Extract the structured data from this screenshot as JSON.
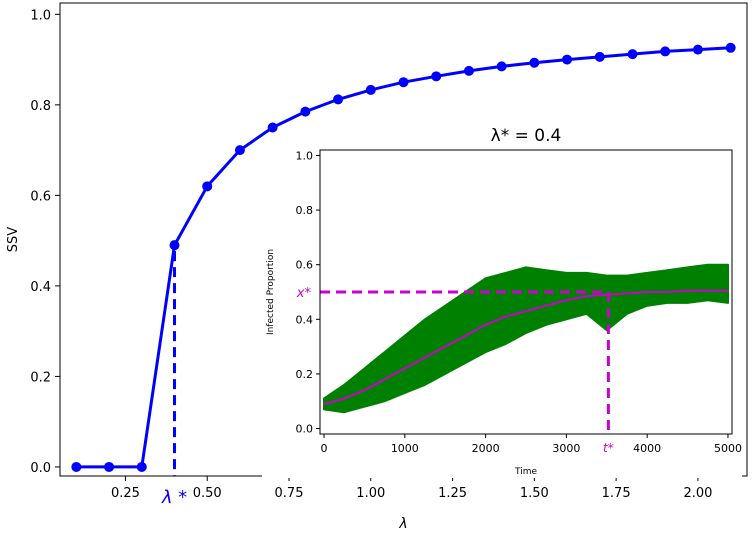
{
  "chart_data": [
    {
      "type": "line",
      "xlabel": "λ",
      "ylabel": "SSV",
      "xlim": [
        0.05,
        2.15
      ],
      "ylim": [
        -0.02,
        1.025
      ],
      "xticks": [
        0.25,
        0.5,
        0.75,
        1.0,
        1.25,
        1.5,
        1.75,
        2.0
      ],
      "xtick_labels": [
        "0.25",
        "0.50",
        "0.75",
        "1.00",
        "1.25",
        "1.50",
        "1.75",
        "2.00"
      ],
      "yticks": [
        0.0,
        0.2,
        0.4,
        0.6,
        0.8,
        1.0
      ],
      "ytick_labels": [
        "0.0",
        "0.2",
        "0.4",
        "0.6",
        "0.8",
        "1.0"
      ],
      "series": [
        {
          "color": "#0000ff",
          "x": [
            0.1,
            0.2,
            0.3,
            0.4,
            0.5,
            0.6,
            0.7,
            0.8,
            0.9,
            1.0,
            1.1,
            1.2,
            1.3,
            1.4,
            1.5,
            1.6,
            1.7,
            1.8,
            1.9,
            2.0,
            2.1
          ],
          "y": [
            0.0,
            0.0,
            0.0,
            0.49,
            0.62,
            0.7,
            0.75,
            0.785,
            0.812,
            0.833,
            0.85,
            0.863,
            0.875,
            0.885,
            0.893,
            0.9,
            0.906,
            0.912,
            0.918,
            0.922,
            0.926
          ]
        }
      ],
      "annotation": {
        "label": "λ *",
        "x": 0.4,
        "y": 0.49,
        "color": "#0000ff"
      }
    },
    {
      "type": "line",
      "title": "λ* = 0.4",
      "xlabel": "Time",
      "ylabel": "Infected Proportion",
      "xlim": [
        -50,
        5050
      ],
      "ylim": [
        -0.02,
        1.02
      ],
      "xticks": [
        0,
        1000,
        2000,
        3000,
        4000,
        5000
      ],
      "xtick_labels": [
        "0",
        "1000",
        "2000",
        "3000",
        "4000",
        "5000"
      ],
      "yticks": [
        0.0,
        0.2,
        0.4,
        0.6,
        0.8,
        1.0
      ],
      "ytick_labels": [
        "0.0",
        "0.2",
        "0.4",
        "0.6",
        "0.8",
        "1.0"
      ],
      "band": {
        "color": "#008000",
        "x": [
          0,
          250,
          500,
          750,
          1000,
          1250,
          1500,
          1750,
          2000,
          2250,
          2500,
          2750,
          3000,
          3250,
          3500,
          3750,
          4000,
          4250,
          4500,
          4750,
          5000
        ],
        "upper": [
          0.11,
          0.16,
          0.22,
          0.28,
          0.34,
          0.4,
          0.45,
          0.5,
          0.55,
          0.57,
          0.59,
          0.58,
          0.57,
          0.57,
          0.56,
          0.56,
          0.57,
          0.58,
          0.59,
          0.6,
          0.6
        ],
        "lower": [
          0.07,
          0.06,
          0.08,
          0.1,
          0.13,
          0.16,
          0.2,
          0.24,
          0.28,
          0.31,
          0.35,
          0.38,
          0.4,
          0.42,
          0.36,
          0.42,
          0.45,
          0.46,
          0.46,
          0.47,
          0.46
        ]
      },
      "mean_line": {
        "color": "#cc00cc",
        "x": [
          0,
          250,
          500,
          750,
          1000,
          1250,
          1500,
          1750,
          2000,
          2250,
          2500,
          2750,
          3000,
          3250,
          3500,
          3750,
          4000,
          4250,
          4500,
          4750,
          5000
        ],
        "y": [
          0.09,
          0.11,
          0.14,
          0.18,
          0.22,
          0.26,
          0.3,
          0.34,
          0.38,
          0.41,
          0.43,
          0.45,
          0.47,
          0.485,
          0.49,
          0.495,
          0.5,
          0.5,
          0.505,
          0.505,
          0.505
        ]
      },
      "reference_lines": {
        "color": "#cc00cc",
        "x_star": 3520,
        "y_star": 0.5,
        "x_label": "t*",
        "y_label": "x*"
      }
    }
  ]
}
